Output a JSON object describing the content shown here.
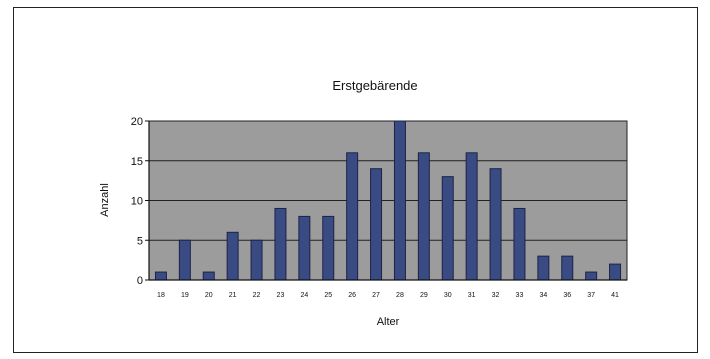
{
  "chart_data": {
    "type": "bar",
    "title": "Erstgebärende",
    "xlabel": "Alter",
    "ylabel": "Anzahl",
    "ylim": [
      0,
      20
    ],
    "yticks": [
      "0",
      "5",
      "10",
      "15",
      "20"
    ],
    "grid": true,
    "categories": [
      "18",
      "19",
      "20",
      "21",
      "22",
      "23",
      "24",
      "25",
      "26",
      "27",
      "28",
      "29",
      "30",
      "31",
      "32",
      "33",
      "34",
      "36",
      "37",
      "41"
    ],
    "values": [
      1,
      5,
      1,
      6,
      5,
      9,
      8,
      8,
      16,
      14,
      20,
      16,
      13,
      16,
      14,
      9,
      3,
      3,
      1,
      2
    ],
    "colors": {
      "plot_background": "#9c9c9c",
      "bar_fill": "#3a4a82",
      "bar_edge": "#1c2448",
      "gridline": "#222222"
    }
  }
}
